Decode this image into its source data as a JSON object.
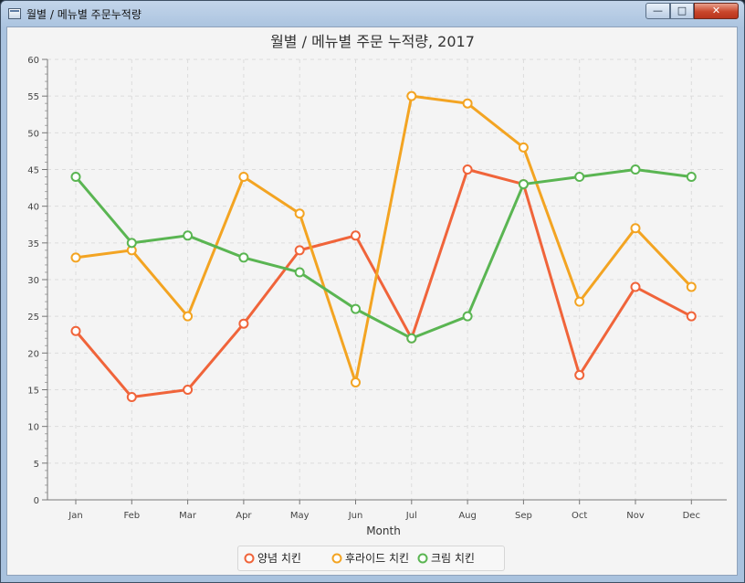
{
  "window": {
    "title": "월별 / 메뉴별 주문누적량"
  },
  "chart_data": {
    "type": "line",
    "title": "월별 / 메뉴별 주문 누적량, 2017",
    "xlabel": "Month",
    "ylabel": "",
    "categories": [
      "Jan",
      "Feb",
      "Mar",
      "Apr",
      "May",
      "Jun",
      "Jul",
      "Aug",
      "Sep",
      "Oct",
      "Nov",
      "Dec"
    ],
    "ylim": [
      0,
      60
    ],
    "yticks": [
      0,
      5,
      10,
      15,
      20,
      25,
      30,
      35,
      40,
      45,
      50,
      55,
      60
    ],
    "grid": true,
    "legend_position": "bottom",
    "series": [
      {
        "name": "양념 치킨",
        "color": "#f0643a",
        "values": [
          23,
          14,
          15,
          24,
          34,
          36,
          22,
          45,
          43,
          17,
          29,
          25
        ]
      },
      {
        "name": "후라이드 치킨",
        "color": "#f3a422",
        "values": [
          33,
          34,
          25,
          44,
          39,
          16,
          55,
          54,
          48,
          27,
          37,
          29
        ]
      },
      {
        "name": "크림 치킨",
        "color": "#5ab552",
        "values": [
          44,
          35,
          36,
          33,
          31,
          26,
          22,
          25,
          43,
          44,
          45,
          44
        ]
      }
    ]
  }
}
